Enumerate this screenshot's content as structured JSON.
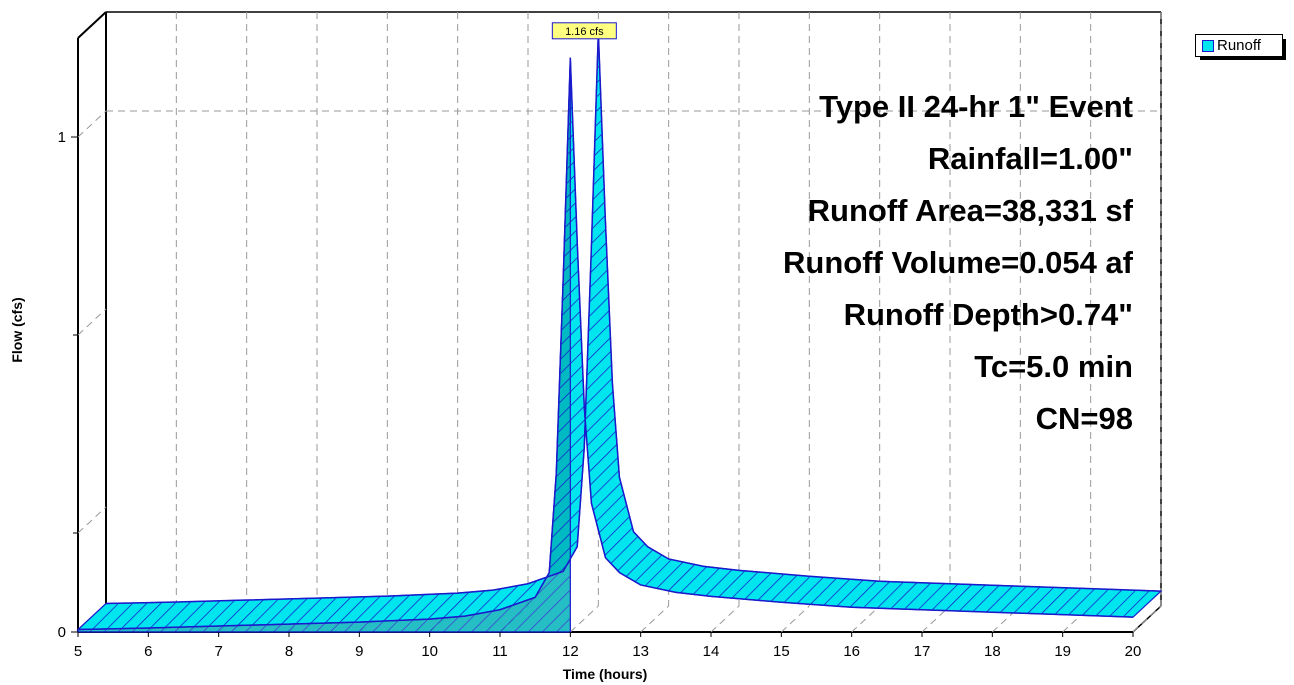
{
  "chart_data": {
    "type": "area",
    "title": "",
    "xlabel": "Time  (hours)",
    "ylabel": "Flow  (cfs)",
    "xlim": [
      5,
      20
    ],
    "ylim": [
      0,
      1.2
    ],
    "x_ticks": [
      "5",
      "6",
      "7",
      "8",
      "9",
      "10",
      "11",
      "12",
      "13",
      "14",
      "15",
      "16",
      "17",
      "18",
      "19",
      "20"
    ],
    "y_ticks": [
      "0",
      "1"
    ],
    "grid": true,
    "legend_position": "top-right",
    "series": [
      {
        "name": "Runoff",
        "color": "#00e5ee",
        "edge_color": "#1a1acc",
        "x": [
          5,
          6,
          7,
          8,
          9,
          10,
          10.5,
          11,
          11.5,
          11.7,
          11.8,
          11.9,
          12.0,
          12.1,
          12.2,
          12.3,
          12.5,
          12.7,
          13,
          13.5,
          14,
          15,
          16,
          17,
          18,
          19,
          20
        ],
        "y": [
          0.005,
          0.008,
          0.012,
          0.016,
          0.02,
          0.026,
          0.032,
          0.045,
          0.07,
          0.12,
          0.32,
          0.72,
          1.16,
          0.78,
          0.45,
          0.26,
          0.15,
          0.12,
          0.095,
          0.08,
          0.072,
          0.06,
          0.05,
          0.045,
          0.04,
          0.035,
          0.03
        ]
      }
    ],
    "peak_label": "1.16 cfs",
    "annotations": [
      "Type II 24-hr 1\" Event",
      "Rainfall=1.00\"",
      "Runoff Area=38,331 sf",
      "Runoff Volume=0.054 af",
      "Runoff Depth>0.74\"",
      "Tc=5.0 min",
      "CN=98"
    ]
  }
}
